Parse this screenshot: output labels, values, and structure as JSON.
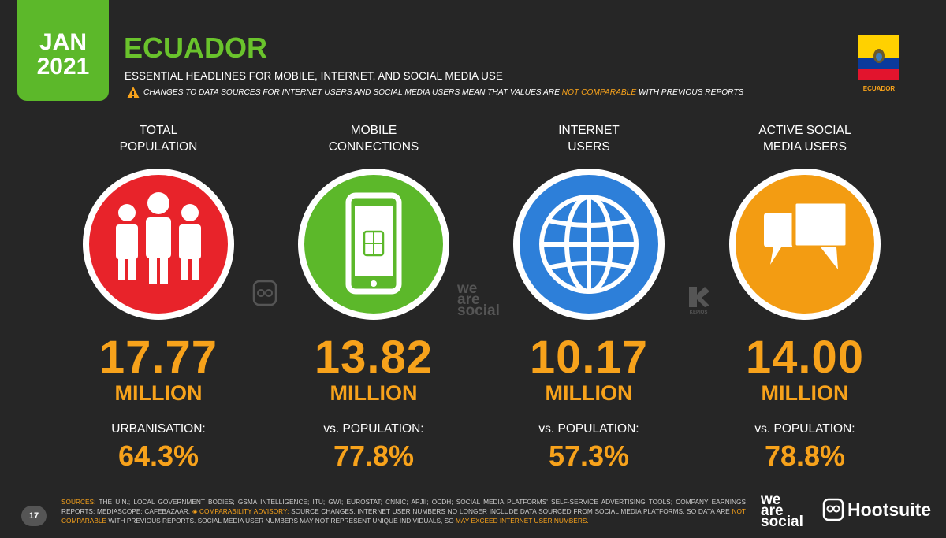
{
  "header": {
    "date": [
      "JAN",
      "2021"
    ],
    "title": "ECUADOR",
    "subtitle": "ESSENTIAL HEADLINES FOR MOBILE, INTERNET, AND SOCIAL MEDIA USE",
    "advisory": [
      {
        "text": "CHANGES TO DATA SOURCES FOR INTERNET USERS AND SOCIAL MEDIA USERS MEAN THAT VALUES ARE "
      },
      {
        "text": "NOT COMPARABLE",
        "color": "#f7a21b"
      },
      {
        "text": " WITH PREVIOUS REPORTS"
      }
    ],
    "flag_label": "ECUADOR"
  },
  "cards": [
    {
      "label": [
        "TOTAL",
        "POPULATION"
      ],
      "color": "#e8232a",
      "value": "17.77",
      "unit": "MILLION",
      "sub_label": "URBANISATION:",
      "sub_value": "64.3%"
    },
    {
      "label": [
        "MOBILE",
        "CONNECTIONS"
      ],
      "color": "#5cb82a",
      "value": "13.82",
      "unit": "MILLION",
      "sub_label": "vs. POPULATION:",
      "sub_value": "77.8%"
    },
    {
      "label": [
        "INTERNET",
        "USERS"
      ],
      "color": "#2d7fd9",
      "value": "10.17",
      "unit": "MILLION",
      "sub_label": "vs. POPULATION:",
      "sub_value": "57.3%"
    },
    {
      "label": [
        "ACTIVE SOCIAL",
        "MEDIA USERS"
      ],
      "color": "#f39c12",
      "value": "14.00",
      "unit": "MILLION",
      "sub_label": "vs. POPULATION:",
      "sub_value": "78.8%"
    }
  ],
  "watermarks": {
    "wearesocial": [
      "we",
      "are",
      "social"
    ],
    "kepios": "KEPIOS"
  },
  "footer": {
    "page": "17",
    "sources": [
      {
        "text": "SOURCES:",
        "color": "#f7a21b"
      },
      {
        "text": " THE U.N.; LOCAL GOVERNMENT BODIES; GSMA INTELLIGENCE; ITU; GWI; EUROSTAT; CNNIC; APJII; OCDH; SOCIAL MEDIA PLATFORMS' SELF-SERVICE ADVERTISING TOOLS; COMPANY EARNINGS REPORTS; MEDIASCOPE; CAFEBAZAAR. "
      },
      {
        "text": "◈ COMPARABILITY ADVISORY:",
        "color": "#f7a21b"
      },
      {
        "text": " SOURCE CHANGES. INTERNET USER NUMBERS NO LONGER INCLUDE DATA SOURCED FROM SOCIAL MEDIA PLATFORMS, SO DATA ARE "
      },
      {
        "text": "NOT COMPARABLE",
        "color": "#f7a21b"
      },
      {
        "text": " WITH PREVIOUS REPORTS. SOCIAL MEDIA USER NUMBERS MAY NOT REPRESENT UNIQUE INDIVIDUALS, SO "
      },
      {
        "text": "MAY EXCEED INTERNET USER NUMBERS.",
        "color": "#f7a21b"
      }
    ],
    "logo_was": [
      "we",
      "are",
      "social"
    ],
    "logo_hootsuite": "Hootsuite"
  }
}
